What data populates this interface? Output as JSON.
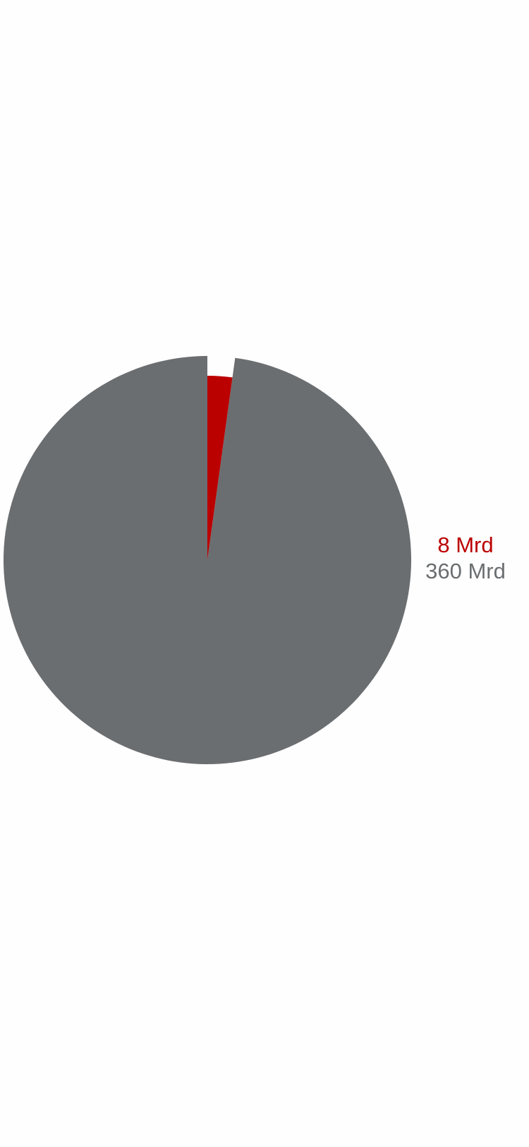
{
  "chart_data": {
    "type": "pie",
    "values": [
      8,
      360
    ],
    "value_labels": [
      "8 Mrd",
      "360 Mrd"
    ],
    "colors": [
      "#bb0000",
      "#6b6e70"
    ]
  }
}
